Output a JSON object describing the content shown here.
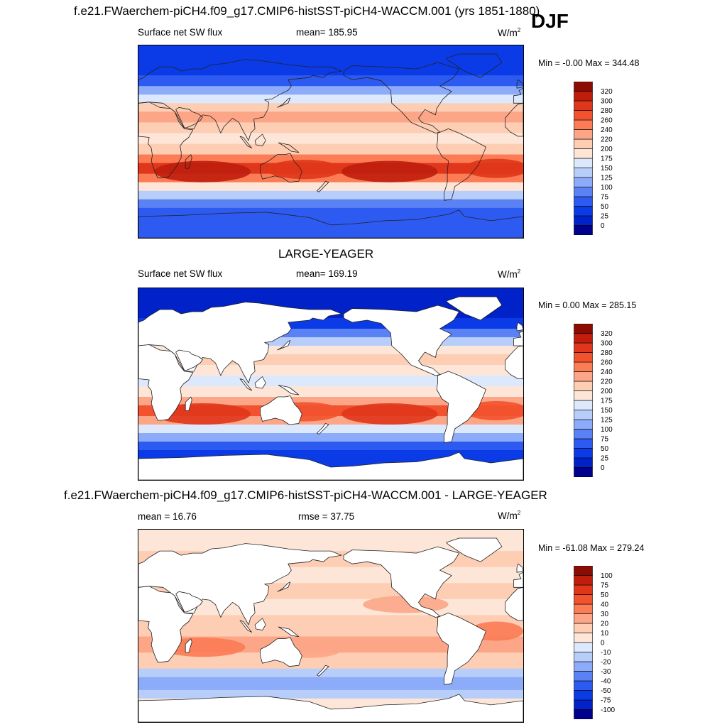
{
  "page": {
    "main_title": "f.e21.FWaerchem-piCH4.f09_g17.CMIP6-histSST-piCH4-WACCM.001 (yrs 1851-1880)",
    "season": "DJF"
  },
  "panels": [
    {
      "title": "",
      "left_label": "Surface net SW flux",
      "center_label": "mean= 185.95",
      "units_base": "W/m",
      "units_sup": "2",
      "minmax": "Min =  -0.00 Max = 344.48"
    },
    {
      "title": "LARGE-YEAGER",
      "left_label": "Surface net SW flux",
      "center_label": "mean= 169.19",
      "units_base": "W/m",
      "units_sup": "2",
      "minmax": "Min =   0.00 Max = 285.15"
    },
    {
      "title": "f.e21.FWaerchem-piCH4.f09_g17.CMIP6-histSST-piCH4-WACCM.001 - LARGE-YEAGER",
      "left_label": "mean =  16.76",
      "center_label": "rmse =  37.75",
      "units_base": "W/m",
      "units_sup": "2",
      "minmax": "Min = -61.08 Max = 279.24"
    }
  ],
  "chart_data": [
    {
      "type": "heatmap",
      "title": "Surface net SW flux",
      "units": "W/m2",
      "mean": 185.95,
      "min": -0.0,
      "max": 344.48,
      "land_masked": false,
      "colorbar": {
        "levels": [
          "0",
          "25",
          "50",
          "75",
          "100",
          "125",
          "150",
          "175",
          "200",
          "220",
          "240",
          "260",
          "280",
          "300",
          "320"
        ],
        "colors": [
          "#00008c",
          "#0022c8",
          "#0a3be6",
          "#2d5af0",
          "#5a82f5",
          "#8cabf8",
          "#b7cdfa",
          "#dce8fc",
          "#fde6d7",
          "#fdcdb4",
          "#fca587",
          "#fb7c55",
          "#f2522e",
          "#e0361b",
          "#bf1e0d",
          "#8c0c04"
        ]
      }
    },
    {
      "type": "heatmap",
      "title": "Surface net SW flux",
      "units": "W/m2",
      "mean": 169.19,
      "min": 0.0,
      "max": 285.15,
      "land_masked": true,
      "colorbar": {
        "levels": [
          "0",
          "25",
          "50",
          "75",
          "100",
          "125",
          "150",
          "175",
          "200",
          "220",
          "240",
          "260",
          "280",
          "300",
          "320"
        ],
        "colors": [
          "#00008c",
          "#0022c8",
          "#0a3be6",
          "#2d5af0",
          "#5a82f5",
          "#8cabf8",
          "#b7cdfa",
          "#dce8fc",
          "#fde6d7",
          "#fdcdb4",
          "#fca587",
          "#fb7c55",
          "#f2522e",
          "#e0361b",
          "#bf1e0d",
          "#8c0c04"
        ]
      }
    },
    {
      "type": "heatmap",
      "title": "f.e21.FWaerchem-piCH4.f09_g17.CMIP6-histSST-piCH4-WACCM.001 - LARGE-YEAGER",
      "units": "W/m2",
      "mean": 16.76,
      "rmse": 37.75,
      "min": -61.08,
      "max": 279.24,
      "land_masked": true,
      "colorbar": {
        "levels": [
          "-100",
          "-75",
          "-50",
          "-40",
          "-30",
          "-20",
          "-10",
          "0",
          "10",
          "20",
          "30",
          "40",
          "50",
          "75",
          "100"
        ],
        "colors": [
          "#00008c",
          "#0022c8",
          "#0a3be6",
          "#2d5af0",
          "#5a82f5",
          "#8cabf8",
          "#b7cdfa",
          "#dce8fc",
          "#fde6d7",
          "#fdcdb4",
          "#fca587",
          "#fb7c55",
          "#f2522e",
          "#e0361b",
          "#bf1e0d",
          "#8c0c04"
        ]
      }
    }
  ]
}
